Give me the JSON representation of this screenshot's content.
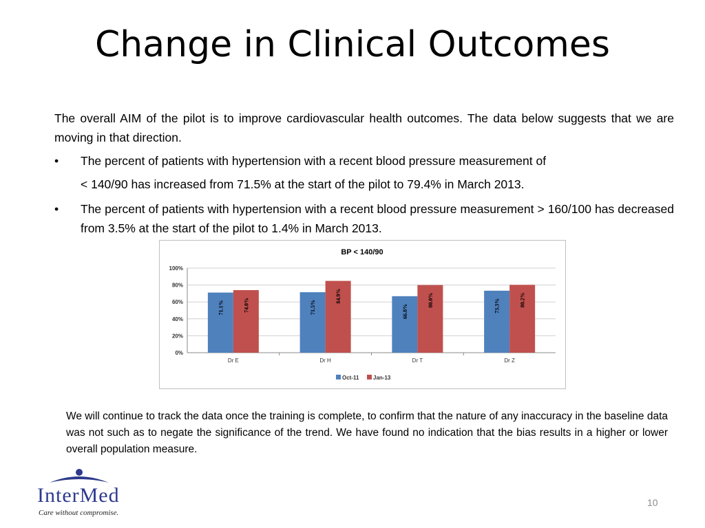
{
  "slide": {
    "title": "Change in Clinical Outcomes",
    "intro": "The overall AIM of the pilot is to improve cardiovascular health outcomes.  The data below suggests that we are moving in that direction.",
    "bullets": [
      {
        "marker": "•",
        "line1": "The percent of patients with hypertension with a recent blood pressure measurement of",
        "line2": "< 140/90  has increased from 71.5% at the start of the pilot to 79.4% in March 2013."
      },
      {
        "marker": "•",
        "text": "The percent of patients with hypertension with a recent blood pressure measurement >  160/100 has decreased from 3.5% at the start of the pilot to 1.4% in March 2013."
      }
    ],
    "bottom_text": "We will continue to track the data once the training is complete, to confirm that the nature of any inaccuracy in the baseline data was not such as to negate the significance of the trend. We have found no indication that the bias results in a higher or lower overall population measure.",
    "page_number": "10"
  },
  "logo": {
    "name": "InterMed",
    "tagline": "Care without compromise."
  },
  "chart_data": {
    "type": "bar",
    "title": "BP < 140/90",
    "categories": [
      "Dr E",
      "Dr H",
      "Dr T",
      "Dr Z"
    ],
    "series": [
      {
        "name": "Oct-11",
        "values": [
          71.1,
          71.5,
          66.8,
          73.3
        ],
        "labels": [
          "71.1%",
          "71.5%",
          "66.8%",
          "73.3%"
        ],
        "color": "#4f81bd"
      },
      {
        "name": "Jan-13",
        "values": [
          74.0,
          84.9,
          80.0,
          80.2
        ],
        "labels": [
          "74.0%",
          "84.9%",
          "80.0%",
          "80.2%"
        ],
        "color": "#c0504d"
      }
    ],
    "yticks": [
      "0%",
      "20%",
      "40%",
      "60%",
      "80%",
      "100%"
    ],
    "ylim": [
      0,
      100
    ],
    "grid": true,
    "legend": "bottom"
  }
}
